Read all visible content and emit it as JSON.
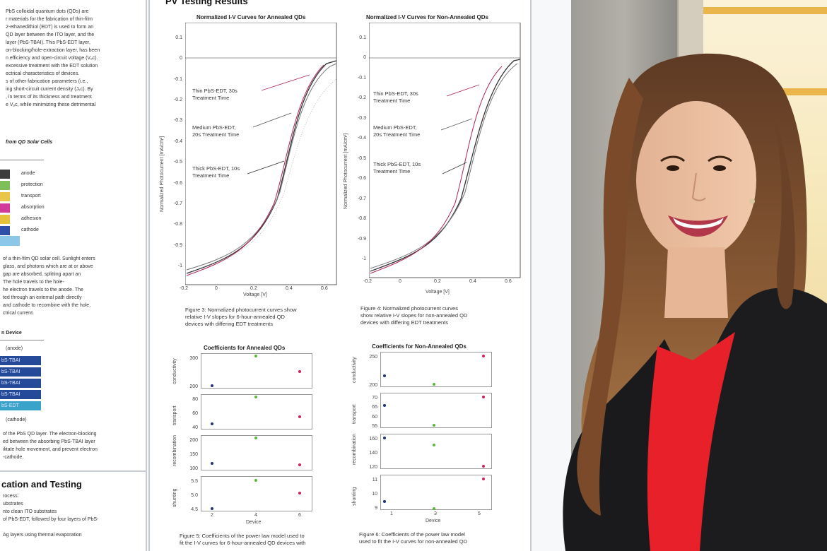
{
  "scene": {
    "description_colors": {
      "wall": "#7b7a76",
      "poster": "#ffffff",
      "jacket": "#1a1a1c",
      "shirt": "#e8202a",
      "hair": "#7a4a2a"
    }
  },
  "left_panel": {
    "intro_lines": [
      "PbS colloidal quantum dots (QDs) are",
      "r materials for the fabrication of thin-film",
      "2-ethanedithiol (EDT) is used to form an",
      "QD layer between the ITO layer, and the",
      "layer (PbS-TBAI).  This PbS-EDT layer,",
      "on-blocking/hole-extraction layer, has been",
      "n efficiency and open-circuit voltage (Vₒc).",
      "excessive treatment with the EDT solution",
      "ectrical characteristics of devices.",
      "s of other fabrication parameters (i.e.,",
      "ing short-circuit current density (Jₛc).  By",
      ", in terms of its thickness and treatment",
      "e Vₒc, while minimizing these detrimental"
    ],
    "section_heading": "from QD Solar Cells",
    "legend": [
      {
        "label": "anode",
        "color": "#3c3c3c"
      },
      {
        "label": "protection",
        "color": "#7fbf5a"
      },
      {
        "label": "transport",
        "color": "#e9c64a"
      },
      {
        "label": "absorption",
        "color": "#d13c9a"
      },
      {
        "label": "adhesion",
        "color": "#e6c23a"
      },
      {
        "label": "cathode",
        "color": "#2f4fa8"
      }
    ],
    "figure_text": [
      "of a thin-film QD solar cell.  Sunlight enters",
      "glass, and photons which are at or above",
      "gap are absorbed, splitting apart an",
      "  The hole travels to the hole-",
      "he electron travels to the anode.  The",
      "ted through an external path directly",
      "and cathode to recombine with the hole,",
      "ctrical current."
    ],
    "device_heading": "n Device",
    "device_top": "(anode)",
    "device_layers": [
      "bS-TBAI",
      "bS-TBAI",
      "bS-TBAI",
      "bS-TBAI",
      "bS-EDT"
    ],
    "device_bottom": "(cathode)",
    "device_text": [
      "of the PbS QD layer.  The electron-blocking",
      "ed between the absorbing PbS-TBAI layer",
      "ilitate hole movement, and prevent electron",
      "-cathode."
    ],
    "fab_heading": "cation and Testing",
    "fab_lines": [
      "rocess:",
      "ubstrates",
      "nto clean ITO substrates",
      "of PbS-EDT, followed by four layers  of PbS-",
      "",
      "Ag layers using thermal evaporation"
    ]
  },
  "center_panel": {
    "heading": "PV Testing Results",
    "plot_annealed": {
      "title": "Normalized I-V Curves for Annealed QDs",
      "ylabel": "Normalized Photocurrent [mA/cm²]",
      "xlabel": "Voltage [V]",
      "yticks": [
        "0.1",
        "0",
        "-0.1",
        "-0.2",
        "-0.3",
        "-0.4",
        "-0.5",
        "-0.6",
        "-0.7",
        "-0.8",
        "-0.9",
        "-1"
      ],
      "xticks": [
        "-0.2",
        "0",
        "0.2",
        "0.4",
        "0.6"
      ],
      "annotations": [
        [
          "Thin PbS-EDT, 30s",
          "Treatment Time"
        ],
        [
          "Medium PbS-EDT,",
          "20s Treatment Time"
        ],
        [
          "Thick PbS-EDT, 10s",
          "Treatment Time"
        ]
      ],
      "caption": [
        "Figure 3: Normalized photocurrent curves show",
        "relative I-V slopes for 6-hour-annealed QD",
        "devices with differing EDT treatments"
      ]
    },
    "plot_nonannealed": {
      "title": "Normalized I-V Curves for Non-Annealed QDs",
      "ylabel": "Normalized Photocurrent [mA/cm²]",
      "xlabel": "Voltage [V]",
      "yticks": [
        "0.1",
        "0",
        "-0.1",
        "-0.2",
        "-0.3",
        "-0.4",
        "-0.5",
        "-0.6",
        "-0.7",
        "-0.8",
        "-0.9",
        "-1"
      ],
      "xticks": [
        "-0.2",
        "0",
        "0.2",
        "0.4",
        "0.6"
      ],
      "annotations": [
        [
          "Thin PbS-EDT, 30s",
          "Treatment Time"
        ],
        [
          "Medium PbS-EDT,",
          "20s Treatment Time"
        ],
        [
          "Thick PbS-EDT, 10s",
          "Treatment Time"
        ]
      ],
      "caption": [
        "Figure 4: Normalized photocurrent curves",
        "show relative I-V slopes for non-annealed QD",
        "devices with differing EDT treatments"
      ]
    },
    "coef_annealed": {
      "title": "Coefficients for Annealed QDs",
      "rows": [
        {
          "label": "conductivity",
          "ticks": [
            "300",
            "200"
          ]
        },
        {
          "label": "transport",
          "ticks": [
            "80",
            "60",
            "40"
          ]
        },
        {
          "label": "recombination",
          "ticks": [
            "200",
            "150",
            "100"
          ]
        },
        {
          "label": "shunting",
          "ticks": [
            "5.5",
            "5.0",
            "4.5"
          ]
        }
      ],
      "xticks": [
        "2",
        "4",
        "6"
      ],
      "xlabel": "Device",
      "caption": [
        "Figure 5: Coefficients of the power law model used to",
        "fit the I-V curves for 6-hour-annealed QD devices with"
      ]
    },
    "coef_nonannealed": {
      "title": "Coefficients for Non-Annealed QDs",
      "rows": [
        {
          "label": "conductivity",
          "ticks": [
            "250",
            "200"
          ]
        },
        {
          "label": "transport",
          "ticks": [
            "70",
            "65",
            "60",
            "55"
          ]
        },
        {
          "label": "recombination",
          "ticks": [
            "160",
            "140",
            "120"
          ]
        },
        {
          "label": "shunting",
          "ticks": [
            "11",
            "10",
            "9"
          ]
        }
      ],
      "xticks": [
        "1",
        "3",
        "5"
      ],
      "xlabel": "Device",
      "caption": [
        "Figure 6: Coefficients of the power law model",
        "used to fit the I-V curves for non-annealed QD"
      ]
    }
  }
}
